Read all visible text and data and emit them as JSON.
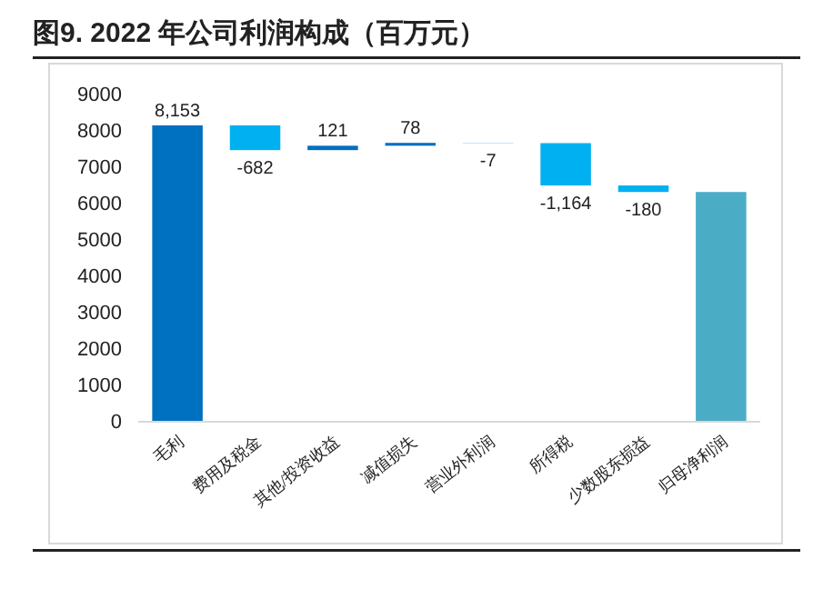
{
  "chart_data": {
    "type": "bar",
    "title": "图9. 2022 年公司利润构成（百万元）",
    "categories": [
      "毛利",
      "费用及税金",
      "其他/投资收益",
      "减值损失",
      "营业外利润",
      "所得税",
      "少数股东损益",
      "归母净利润"
    ],
    "values": [
      8153,
      -682,
      121,
      78,
      -7,
      -1164,
      -180,
      6319
    ],
    "base": [
      0,
      8153,
      7471,
      7592,
      7670,
      7663,
      6499,
      0
    ],
    "colors": [
      "#0070c0",
      "#00b0f0",
      "#0070c0",
      "#0070c0",
      "#00b0f0",
      "#00b0f0",
      "#00b0f0",
      "#4bacc6"
    ],
    "value_labels": [
      "8,153",
      "-682",
      "121",
      "78",
      "-7",
      "-1,164",
      "-180",
      null
    ],
    "ylim": [
      0,
      9000
    ],
    "yticks": [
      0,
      1000,
      2000,
      3000,
      4000,
      5000,
      6000,
      7000,
      8000,
      9000
    ],
    "grid": false
  }
}
